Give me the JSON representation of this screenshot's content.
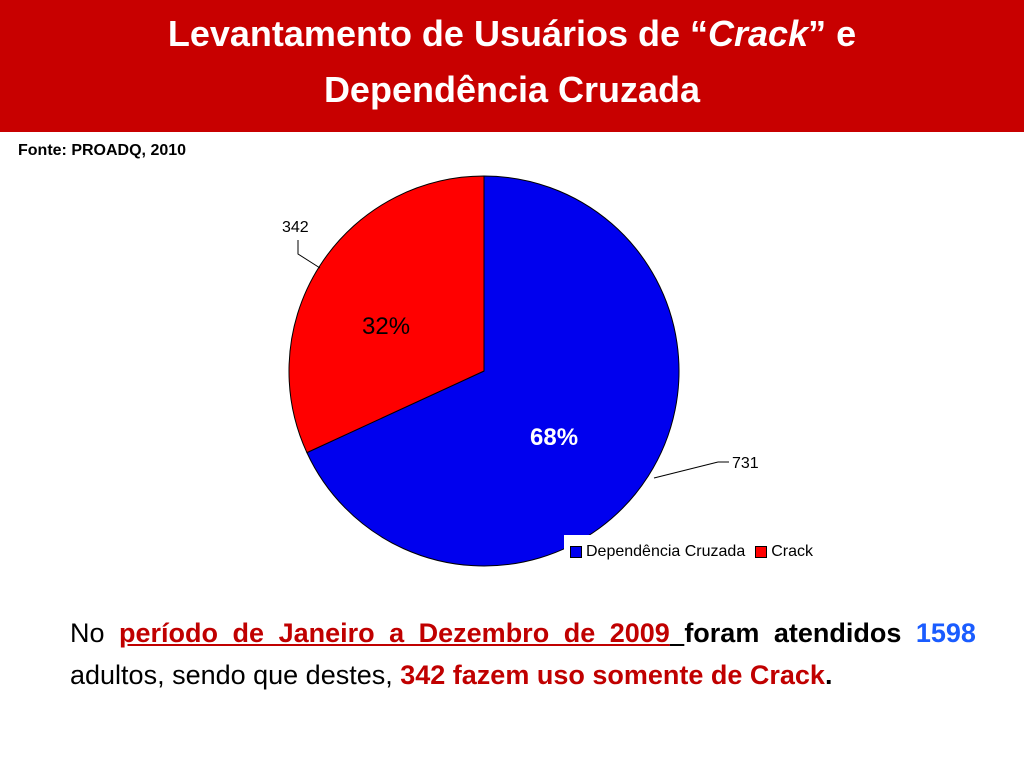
{
  "header": {
    "title_line1_a": "Levantamento de Usuários de “",
    "title_line1_em": "Crack",
    "title_line1_b": "” e",
    "title_line2": "Dependência Cruzada"
  },
  "source": "Fonte: PROADQ, 2010",
  "colors": {
    "header_bg": "#c80000",
    "blue_slice": "#0000ee",
    "red_slice": "#ff0000"
  },
  "chart_data": {
    "type": "pie",
    "title": "",
    "slices": [
      {
        "name": "Dependência Cruzada",
        "value": 731,
        "percent_label": "68%",
        "color": "#0000ee"
      },
      {
        "name": "Crack",
        "value": 342,
        "percent_label": "32%",
        "color": "#ff0000"
      }
    ],
    "value_labels": [
      "731",
      "342"
    ],
    "legend": {
      "position": "bottom-right",
      "entries": [
        "Dependência Cruzada",
        "Crack"
      ]
    }
  },
  "paragraph": {
    "p1": "No ",
    "p2": "período de Janeiro a Dezembro de 2009",
    "p3": " ",
    "p4": "foram atendidos",
    "p5": " ",
    "p6": "1598",
    "p7": " adultos, sendo que destes, ",
    "p8": "342 fazem uso somente de Crack",
    "p9": "."
  }
}
